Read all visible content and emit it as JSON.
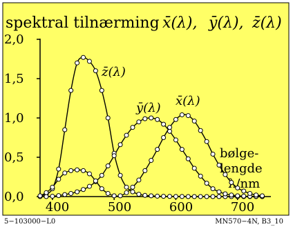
{
  "chart_data": {
    "type": "line",
    "title_main": "spektral tilnærming",
    "title_symbols": [
      "x̄(λ),",
      "ȳ(λ),",
      "z̄(λ)"
    ],
    "x_ticks": [
      "400",
      "500",
      "600",
      "700"
    ],
    "y_ticks": [
      "0,0",
      "0,5",
      "1,0",
      "1,5",
      "2,0"
    ],
    "xlim": [
      380,
      750
    ],
    "ylim": [
      0,
      2.0
    ],
    "axis_label_lines": [
      "bølge-",
      "lengde",
      "λ/nm"
    ],
    "grid": false,
    "colors": {
      "background": "#ffff66",
      "plot": "#000000",
      "marker_fill": "#ffffff"
    },
    "series": [
      {
        "name": "z̄(λ)",
        "x": [
          380,
          390,
          400,
          410,
          420,
          430,
          440,
          450,
          460,
          470,
          480,
          490,
          500,
          510,
          520,
          530,
          540,
          550,
          560,
          570,
          580,
          590,
          600,
          610,
          620,
          630,
          640,
          650,
          660,
          670,
          680,
          690,
          700,
          710,
          720,
          730,
          740
        ],
        "values": [
          0.007,
          0.03,
          0.1,
          0.35,
          0.85,
          1.35,
          1.7,
          1.77,
          1.72,
          1.6,
          1.35,
          1.0,
          0.55,
          0.27,
          0.12,
          0.06,
          0.03,
          0.015,
          0.01,
          0.005,
          0.003,
          0.002,
          0.001,
          0.001,
          0,
          0,
          0,
          0,
          0,
          0,
          0,
          0,
          0,
          0,
          0,
          0,
          0
        ]
      },
      {
        "name": "ȳ(λ)",
        "x": [
          380,
          390,
          400,
          410,
          420,
          430,
          440,
          450,
          460,
          470,
          480,
          490,
          500,
          510,
          520,
          530,
          540,
          550,
          560,
          570,
          580,
          590,
          600,
          610,
          620,
          630,
          640,
          650,
          660,
          670,
          680,
          690,
          700,
          710,
          720,
          730,
          740
        ],
        "values": [
          0,
          0,
          0.004,
          0.012,
          0.025,
          0.04,
          0.06,
          0.09,
          0.13,
          0.19,
          0.27,
          0.39,
          0.52,
          0.66,
          0.78,
          0.88,
          0.95,
          0.99,
          1.0,
          0.98,
          0.92,
          0.83,
          0.72,
          0.6,
          0.48,
          0.36,
          0.26,
          0.17,
          0.1,
          0.06,
          0.035,
          0.02,
          0.01,
          0.006,
          0.003,
          0.002,
          0.001
        ]
      },
      {
        "name": "x̄(λ)",
        "x": [
          380,
          390,
          400,
          410,
          420,
          430,
          440,
          450,
          460,
          470,
          480,
          490,
          500,
          510,
          520,
          530,
          540,
          550,
          560,
          570,
          580,
          590,
          600,
          610,
          620,
          630,
          640,
          650,
          660,
          670,
          680,
          690,
          700,
          710,
          720,
          730,
          740
        ],
        "values": [
          0.01,
          0.05,
          0.12,
          0.22,
          0.3,
          0.33,
          0.34,
          0.33,
          0.29,
          0.2,
          0.1,
          0.04,
          0.01,
          0.01,
          0.05,
          0.12,
          0.21,
          0.33,
          0.46,
          0.6,
          0.75,
          0.88,
          0.98,
          1.04,
          1.03,
          0.96,
          0.84,
          0.7,
          0.54,
          0.4,
          0.28,
          0.18,
          0.11,
          0.07,
          0.04,
          0.02,
          0.01
        ]
      }
    ]
  },
  "footer": {
    "left": "5−103000−L0",
    "right": "MN570−4N, B3_10"
  }
}
